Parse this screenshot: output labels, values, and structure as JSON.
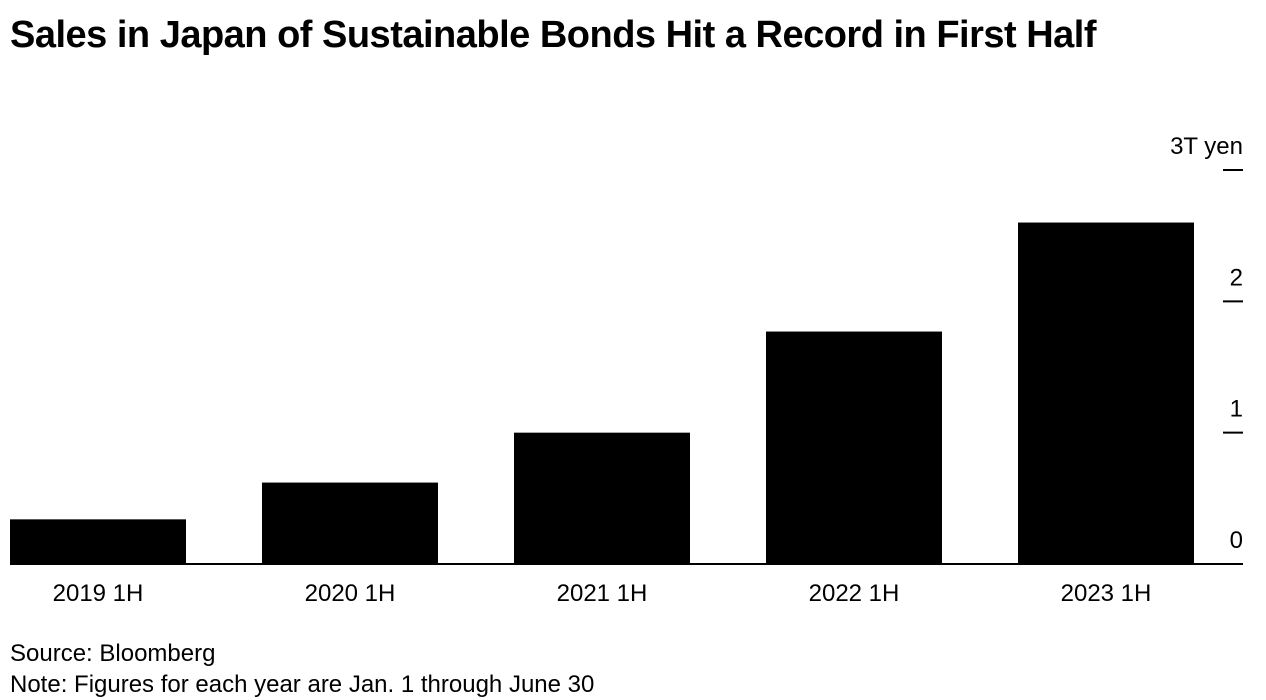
{
  "title": "Sales in Japan of Sustainable Bonds Hit a Record in First Half",
  "source": "Source: Bloomberg",
  "note": "Note: Figures for each year are Jan. 1 through June 30",
  "chart_data": {
    "type": "bar",
    "title": "Sales in Japan of Sustainable Bonds Hit a Record in First Half",
    "categories": [
      "2019 1H",
      "2020 1H",
      "2021 1H",
      "2022 1H",
      "2023 1H"
    ],
    "values": [
      0.34,
      0.62,
      1.0,
      1.77,
      2.6
    ],
    "unit": "trillion yen",
    "ylim": [
      0,
      3
    ],
    "yticks": [
      0,
      1,
      2,
      3
    ],
    "ytick_labels": [
      "0",
      "1",
      "2",
      "3T yen"
    ],
    "bar_color": "#000000",
    "axis_side": "right",
    "grid": false,
    "legend": "none"
  }
}
